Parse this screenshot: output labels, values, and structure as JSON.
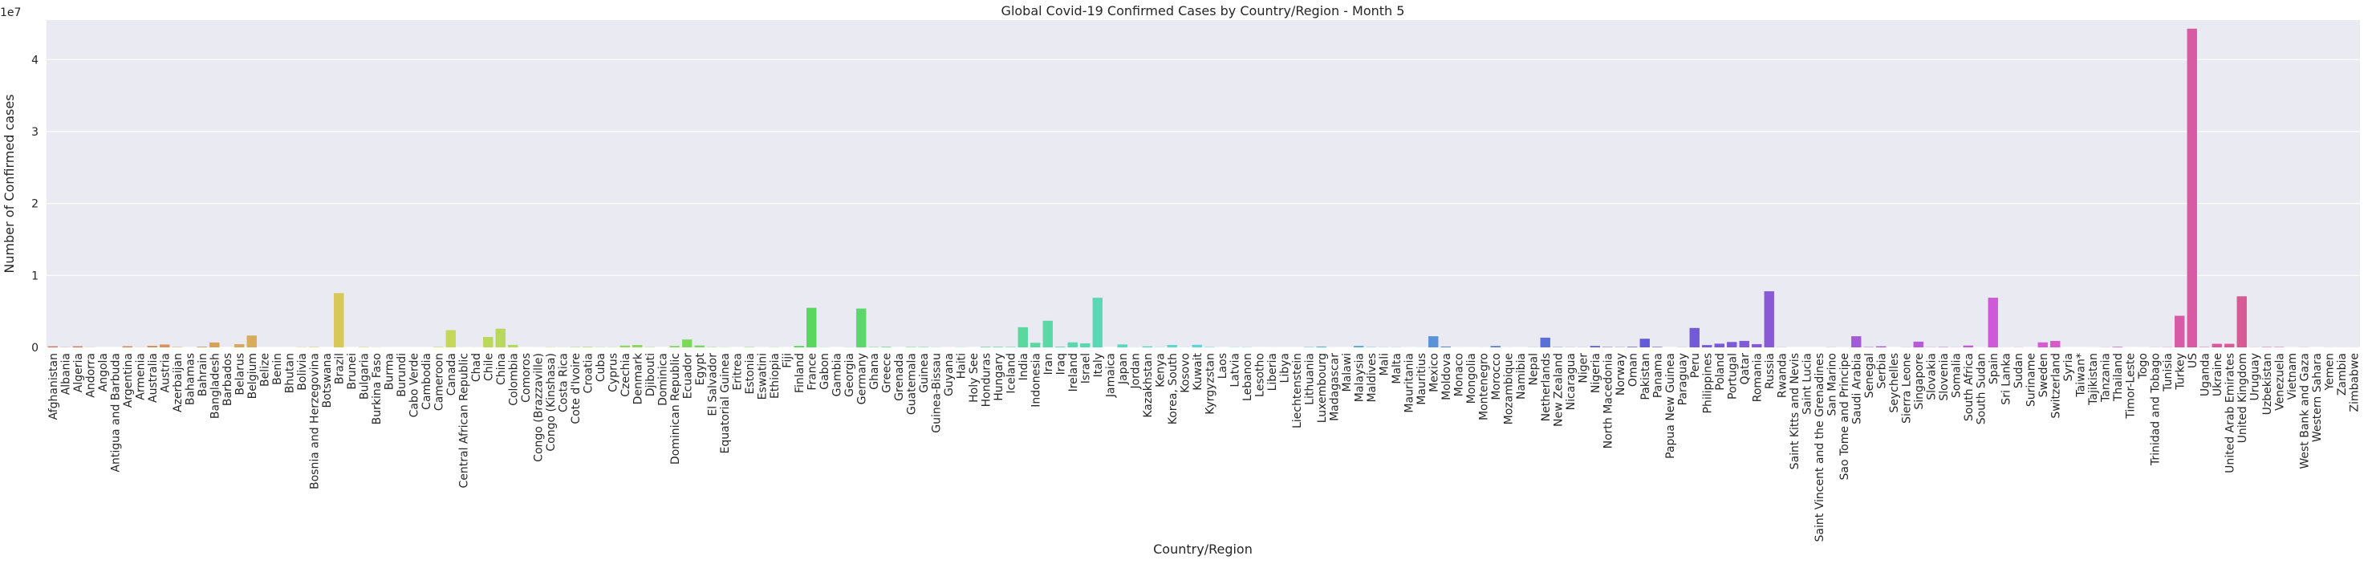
{
  "chart_data": {
    "type": "bar",
    "title": "Global Covid-19 Confirmed Cases by Country/Region - Month 5",
    "xlabel": "Country/Region",
    "ylabel": "Number of Confirmed cases",
    "scale_label": "1e7",
    "ylim": [
      0,
      45500000
    ],
    "yticks": [
      "0",
      "1",
      "2",
      "3",
      "4"
    ],
    "ytick_values": [
      0,
      10000000,
      20000000,
      30000000,
      40000000
    ],
    "grid": true,
    "legend": "none",
    "categories": [
      "Afghanistan",
      "Albania",
      "Algeria",
      "Andorra",
      "Angola",
      "Antigua and Barbuda",
      "Argentina",
      "Armenia",
      "Australia",
      "Austria",
      "Azerbaijan",
      "Bahamas",
      "Bahrain",
      "Bangladesh",
      "Barbados",
      "Belarus",
      "Belgium",
      "Belize",
      "Benin",
      "Bhutan",
      "Bolivia",
      "Bosnia and Herzegovina",
      "Botswana",
      "Brazil",
      "Brunei",
      "Bulgaria",
      "Burkina Faso",
      "Burma",
      "Burundi",
      "Cabo Verde",
      "Cambodia",
      "Cameroon",
      "Canada",
      "Central African Republic",
      "Chad",
      "Chile",
      "China",
      "Colombia",
      "Comoros",
      "Congo (Brazzaville)",
      "Congo (Kinshasa)",
      "Costa Rica",
      "Cote d'Ivoire",
      "Croatia",
      "Cuba",
      "Cyprus",
      "Czechia",
      "Denmark",
      "Djibouti",
      "Dominica",
      "Dominican Republic",
      "Ecuador",
      "Egypt",
      "El Salvador",
      "Equatorial Guinea",
      "Eritrea",
      "Estonia",
      "Eswatini",
      "Ethiopia",
      "Fiji",
      "Finland",
      "France",
      "Gabon",
      "Gambia",
      "Georgia",
      "Germany",
      "Ghana",
      "Greece",
      "Grenada",
      "Guatemala",
      "Guinea",
      "Guinea-Bissau",
      "Guyana",
      "Haiti",
      "Holy See",
      "Honduras",
      "Hungary",
      "Iceland",
      "India",
      "Indonesia",
      "Iran",
      "Iraq",
      "Ireland",
      "Israel",
      "Italy",
      "Jamaica",
      "Japan",
      "Jordan",
      "Kazakhstan",
      "Kenya",
      "Korea, South",
      "Kosovo",
      "Kuwait",
      "Kyrgyzstan",
      "Laos",
      "Latvia",
      "Lebanon",
      "Lesotho",
      "Liberia",
      "Libya",
      "Liechtenstein",
      "Lithuania",
      "Luxembourg",
      "Madagascar",
      "Malawi",
      "Malaysia",
      "Maldives",
      "Mali",
      "Malta",
      "Mauritania",
      "Mauritius",
      "Mexico",
      "Moldova",
      "Monaco",
      "Mongolia",
      "Montenegro",
      "Morocco",
      "Mozambique",
      "Namibia",
      "Nepal",
      "Netherlands",
      "New Zealand",
      "Nicaragua",
      "Niger",
      "Nigeria",
      "North Macedonia",
      "Norway",
      "Oman",
      "Pakistan",
      "Panama",
      "Papua New Guinea",
      "Paraguay",
      "Peru",
      "Philippines",
      "Poland",
      "Portugal",
      "Qatar",
      "Romania",
      "Russia",
      "Rwanda",
      "Saint Kitts and Nevis",
      "Saint Lucia",
      "Saint Vincent and the Grenadines",
      "San Marino",
      "Sao Tome and Principe",
      "Saudi Arabia",
      "Senegal",
      "Serbia",
      "Seychelles",
      "Sierra Leone",
      "Singapore",
      "Slovakia",
      "Slovenia",
      "Somalia",
      "South Africa",
      "South Sudan",
      "Spain",
      "Sri Lanka",
      "Sudan",
      "Suriname",
      "Sweden",
      "Switzerland",
      "Syria",
      "Taiwan*",
      "Tajikistan",
      "Tanzania",
      "Thailand",
      "Timor-Leste",
      "Togo",
      "Trinidad and Tobago",
      "Tunisia",
      "Turkey",
      "US",
      "Uganda",
      "Ukraine",
      "United Arab Emirates",
      "United Kingdom",
      "Uruguay",
      "Uzbekistan",
      "Venezuela",
      "Vietnam",
      "West Bank and Gaza",
      "Western Sahara",
      "Yemen",
      "Zambia",
      "Zimbabwe"
    ],
    "values": [
      150000,
      30000,
      150000,
      20000,
      1000,
      500,
      160000,
      20000,
      220000,
      400000,
      50000,
      2000,
      100000,
      680000,
      1500,
      450000,
      1650000,
      500,
      5000,
      500,
      30000,
      50000,
      1000,
      7550000,
      2000,
      50000,
      20000,
      5000,
      500,
      4000,
      2000,
      70000,
      2400000,
      10000,
      10000,
      1450000,
      2600000,
      350000,
      500,
      10000,
      30000,
      20000,
      50000,
      70000,
      30000,
      30000,
      250000,
      330000,
      40000,
      500,
      200000,
      1100000,
      260000,
      40000,
      20000,
      1000,
      40000,
      5000,
      20000,
      500,
      200000,
      5500000,
      20000,
      1000,
      20000,
      5400000,
      50000,
      80000,
      500,
      50000,
      50000,
      20000,
      2000,
      20000,
      0,
      80000,
      80000,
      60000,
      2800000,
      640000,
      3700000,
      100000,
      700000,
      560000,
      6900000,
      1000,
      410000,
      20000,
      150000,
      30000,
      330000,
      20000,
      360000,
      50000,
      500,
      30000,
      30000,
      500,
      5000,
      2000,
      3000,
      50000,
      120000,
      5000,
      1000,
      210000,
      40000,
      20000,
      20000,
      5000,
      10000,
      1550000,
      120000,
      3000,
      2000,
      5000,
      200000,
      5000,
      1000,
      20000,
      1350000,
      40000,
      20000,
      20000,
      200000,
      50000,
      30000,
      80000,
      1200000,
      70000,
      500,
      20000,
      2700000,
      320000,
      520000,
      750000,
      900000,
      450000,
      7800000,
      20000,
      500,
      500,
      500,
      20000,
      3000,
      1550000,
      50000,
      150000,
      500,
      20000,
      800000,
      30000,
      50000,
      20000,
      260000,
      5000,
      6900000,
      10000,
      20000,
      500,
      700000,
      900000,
      1000,
      1000,
      5000,
      20000,
      80000,
      500,
      5000,
      20000,
      30000,
      4400000,
      44300000,
      50000,
      500000,
      500000,
      7100000,
      20000,
      50000,
      50000,
      5000,
      20000,
      500,
      10000,
      10000,
      10000
    ]
  }
}
